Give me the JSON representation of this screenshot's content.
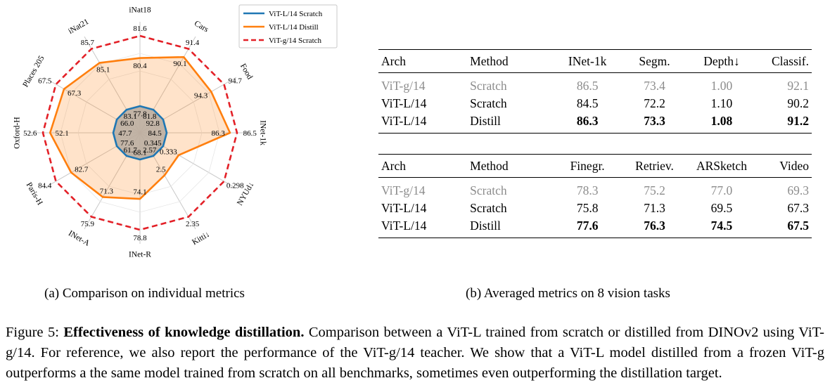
{
  "chart_data": {
    "type": "radar",
    "axes": [
      "iNat18",
      "Cars",
      "Food",
      "INet-1k",
      "NYUd↓",
      "Kitti↓",
      "INet-R",
      "INet-A",
      "Paris-H",
      "Oxford-H",
      "Places 205",
      "iNat21"
    ],
    "series": [
      {
        "name": "ViT-L/14 Scratch",
        "color": "#1f77b4",
        "dash": false,
        "values": [
          77.8,
          81.8,
          92.8,
          84.5,
          0.345,
          2.57,
          68.1,
          61.7,
          77.6,
          47.7,
          66.0,
          83.1
        ],
        "labels": [
          "77.8",
          "81.8",
          "92.8",
          "84.5",
          "0.345",
          "2.57",
          "68.1",
          "61.7",
          "77.6",
          "47.7",
          "66.0",
          "83.1"
        ]
      },
      {
        "name": "ViT-L/14 Distill",
        "color": "#ff7f0e",
        "dash": false,
        "values": [
          80.4,
          90.1,
          94.3,
          86.3,
          0.333,
          2.5,
          74.1,
          71.3,
          82.7,
          52.1,
          67.3,
          85.1
        ],
        "labels": [
          "80.4",
          "90.1",
          "94.3",
          "86.3",
          "0.333",
          "2.5",
          "74.1",
          "71.3",
          "82.7",
          "52.1",
          "67.3",
          "85.1"
        ]
      },
      {
        "name": "ViT-g/14 Scratch",
        "color": "#e32027",
        "dash": true,
        "values": [
          81.6,
          91.4,
          94.7,
          86.5,
          0.298,
          2.35,
          78.8,
          75.9,
          84.4,
          52.6,
          67.5,
          85.7
        ],
        "labels": [
          "81.6",
          "91.4",
          "94.7",
          "86.5",
          "0.298",
          "2.35",
          "78.8",
          "75.9",
          "84.4",
          "52.6",
          "67.5",
          "85.7"
        ]
      }
    ],
    "grid": true,
    "legend": "top-right"
  },
  "table_top": {
    "headers": [
      "Arch",
      "Method",
      "INet-1k",
      "Segm.",
      "Depth↓",
      "Classif."
    ],
    "rows": [
      {
        "arch": "ViT-g/14",
        "method": "Scratch",
        "values": [
          "86.5",
          "73.4",
          "1.00",
          "92.1"
        ],
        "style": "teacher"
      },
      {
        "arch": "ViT-L/14",
        "method": "Scratch",
        "values": [
          "84.5",
          "72.2",
          "1.10",
          "90.2"
        ],
        "style": "normal"
      },
      {
        "arch": "ViT-L/14",
        "method": "Distill",
        "values": [
          "86.3",
          "73.3",
          "1.08",
          "91.2"
        ],
        "style": "best"
      }
    ]
  },
  "table_bottom": {
    "headers": [
      "Arch",
      "Method",
      "Finegr.",
      "Retriev.",
      "ARSketch",
      "Video"
    ],
    "rows": [
      {
        "arch": "ViT-g/14",
        "method": "Scratch",
        "values": [
          "78.3",
          "75.2",
          "77.0",
          "69.3"
        ],
        "style": "teacher"
      },
      {
        "arch": "ViT-L/14",
        "method": "Scratch",
        "values": [
          "75.8",
          "71.3",
          "69.5",
          "67.3"
        ],
        "style": "normal"
      },
      {
        "arch": "ViT-L/14",
        "method": "Distill",
        "values": [
          "77.6",
          "76.3",
          "74.5",
          "67.5"
        ],
        "style": "best"
      }
    ]
  },
  "subcaptions": {
    "a": "(a) Comparison on individual metrics",
    "b": "(b) Averaged metrics on 8 vision tasks"
  },
  "caption": {
    "label": "Figure 5:",
    "title": "Effectiveness of knowledge distillation.",
    "body": "Comparison between a ViT-L trained from scratch or distilled from DINOv2 using ViT-g/14. For reference, we also report the performance of the ViT-g/14 teacher. We show that a ViT-L model distilled from a frozen ViT-g outperforms a the same model trained from scratch on all benchmarks, sometimes even outperforming the distillation target."
  }
}
